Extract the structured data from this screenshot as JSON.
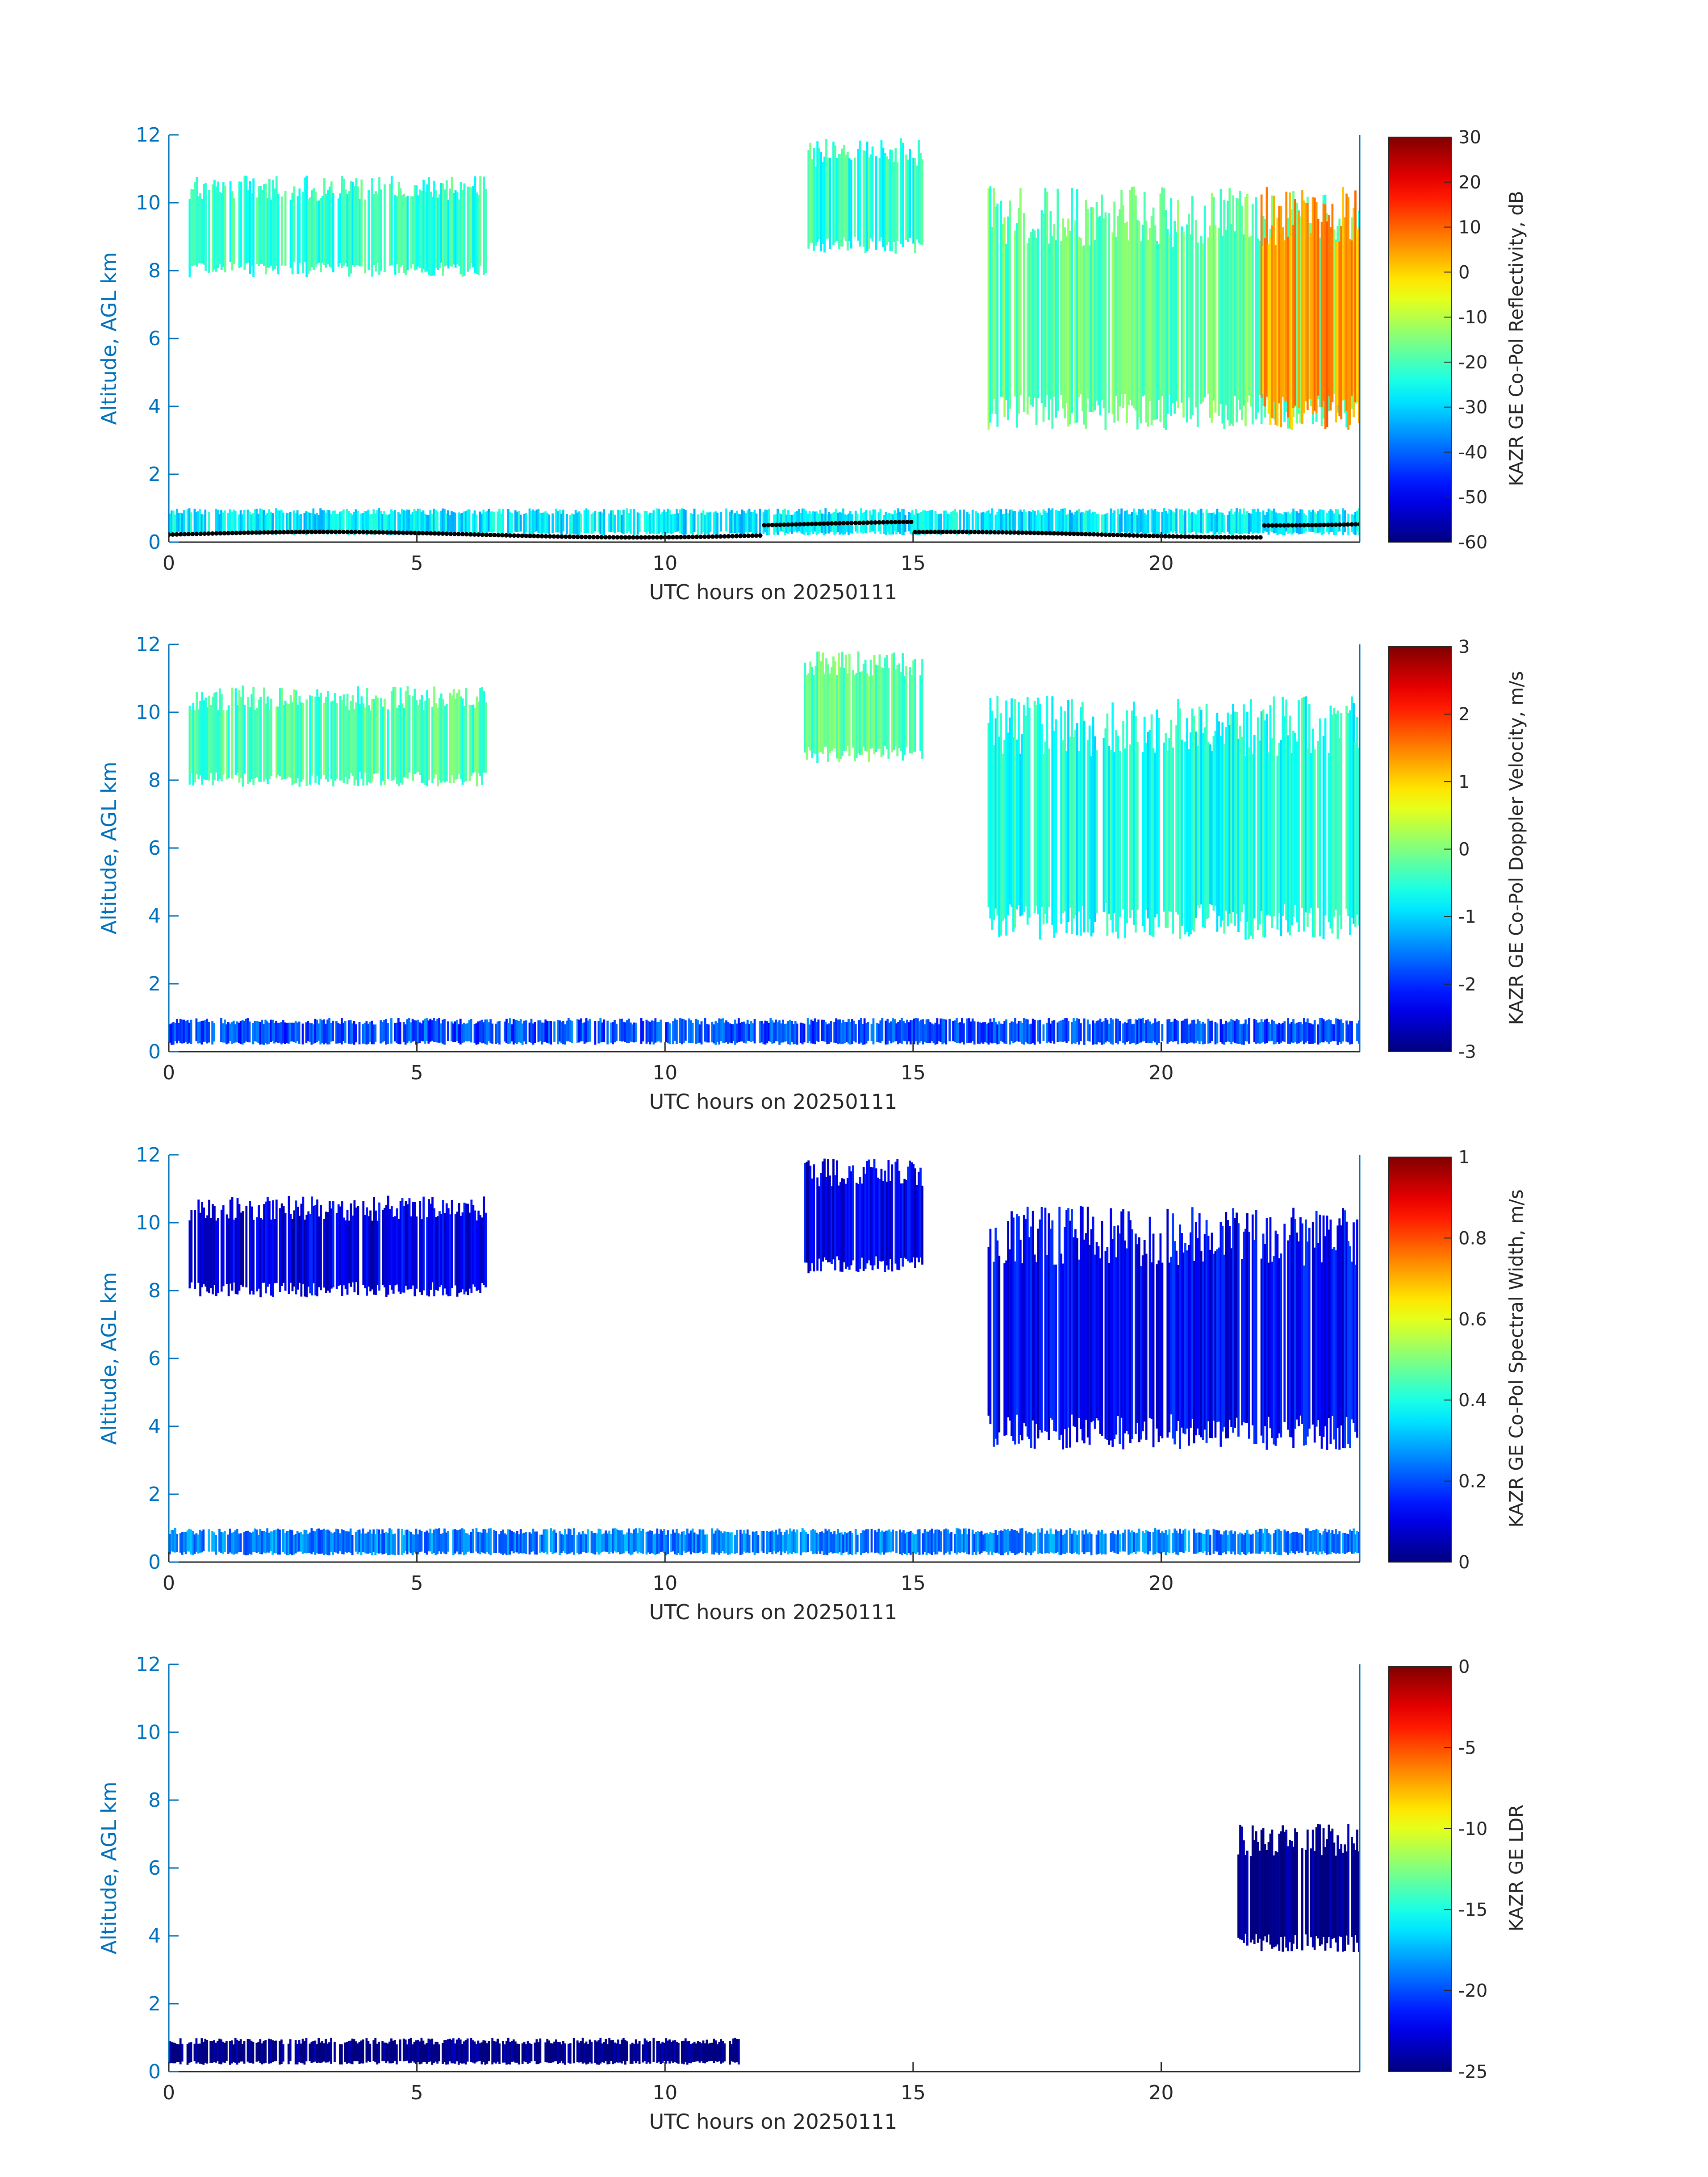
{
  "chart_data": [
    {
      "type": "heatmap",
      "xlabel": "UTC hours on 20250111",
      "ylabel": "Altitude, AGL km",
      "xlim": [
        0,
        24
      ],
      "ylim": [
        0,
        12
      ],
      "xticks": [
        0,
        5,
        10,
        15,
        20
      ],
      "yticks": [
        0,
        2,
        4,
        6,
        8,
        10,
        12
      ],
      "colorbar": {
        "label": "KAZR GE Co-Pol Reflectivity, dB",
        "min": -60,
        "max": 30,
        "ticks": [
          -60,
          -50,
          -40,
          -30,
          -20,
          -10,
          0,
          10,
          20,
          30
        ],
        "colormap": "jet"
      },
      "overlay": "black cloud-base markers near surface",
      "cloud_regions": [
        {
          "x": [
            0.4,
            6.4
          ],
          "y": [
            7.8,
            10.8
          ],
          "value": -22
        },
        {
          "x": [
            12.8,
            15.2
          ],
          "y": [
            8.5,
            11.9
          ],
          "value": -22
        },
        {
          "x": [
            16.5,
            24.0
          ],
          "y": [
            3.3,
            10.5
          ],
          "value": -18
        },
        {
          "x": [
            22.0,
            24.0
          ],
          "y": [
            3.3,
            10.5
          ],
          "value": 5
        },
        {
          "x": [
            0.0,
            24.0
          ],
          "y": [
            0.2,
            1.0
          ],
          "value": -28
        }
      ]
    },
    {
      "type": "heatmap",
      "xlabel": "UTC hours on 20250111",
      "ylabel": "Altitude, AGL km",
      "xlim": [
        0,
        24
      ],
      "ylim": [
        0,
        12
      ],
      "xticks": [
        0,
        5,
        10,
        15,
        20
      ],
      "yticks": [
        0,
        2,
        4,
        6,
        8,
        10,
        12
      ],
      "colorbar": {
        "label": "KAZR GE Co-Pol Doppler Velocity, m/s",
        "min": -3,
        "max": 3,
        "ticks": [
          -3,
          -2,
          -1,
          0,
          1,
          2,
          3
        ],
        "colormap": "jet"
      },
      "cloud_regions": [
        {
          "x": [
            0.4,
            6.4
          ],
          "y": [
            7.8,
            10.8
          ],
          "value": -0.3
        },
        {
          "x": [
            12.8,
            15.2
          ],
          "y": [
            8.5,
            11.9
          ],
          "value": -0.2
        },
        {
          "x": [
            16.5,
            24.0
          ],
          "y": [
            3.3,
            10.5
          ],
          "value": -0.6
        },
        {
          "x": [
            0.0,
            24.0
          ],
          "y": [
            0.2,
            1.0
          ],
          "value": -1.8
        }
      ]
    },
    {
      "type": "heatmap",
      "xlabel": "UTC hours on 20250111",
      "ylabel": "Altitude, AGL km",
      "xlim": [
        0,
        24
      ],
      "ylim": [
        0,
        12
      ],
      "xticks": [
        0,
        5,
        10,
        15,
        20
      ],
      "yticks": [
        0,
        2,
        4,
        6,
        8,
        10,
        12
      ],
      "colorbar": {
        "label": "KAZR GE Co-Pol Spectral Width, m/s",
        "min": 0,
        "max": 1,
        "ticks": [
          0,
          0.2,
          0.4,
          0.6,
          0.8,
          1
        ],
        "colormap": "jet"
      },
      "cloud_regions": [
        {
          "x": [
            0.4,
            6.4
          ],
          "y": [
            7.8,
            10.8
          ],
          "value": 0.1
        },
        {
          "x": [
            12.8,
            15.2
          ],
          "y": [
            8.5,
            11.9
          ],
          "value": 0.1
        },
        {
          "x": [
            16.5,
            24.0
          ],
          "y": [
            3.3,
            10.5
          ],
          "value": 0.12
        },
        {
          "x": [
            0.0,
            24.0
          ],
          "y": [
            0.2,
            1.0
          ],
          "value": 0.25
        }
      ]
    },
    {
      "type": "heatmap",
      "xlabel": "UTC hours on 20250111",
      "ylabel": "Altitude, AGL km",
      "xlim": [
        0,
        24
      ],
      "ylim": [
        0,
        12
      ],
      "xticks": [
        0,
        5,
        10,
        15,
        20
      ],
      "yticks": [
        0,
        2,
        4,
        6,
        8,
        10,
        12
      ],
      "colorbar": {
        "label": "KAZR GE LDR",
        "min": -25,
        "max": 0,
        "ticks": [
          -25,
          -20,
          -15,
          -10,
          -5,
          0
        ],
        "colormap": "jet"
      },
      "cloud_regions": [
        {
          "x": [
            21.5,
            24.0
          ],
          "y": [
            3.5,
            7.3
          ],
          "value": -25
        },
        {
          "x": [
            0.0,
            11.5
          ],
          "y": [
            0.2,
            1.0
          ],
          "value": -25
        }
      ]
    }
  ]
}
